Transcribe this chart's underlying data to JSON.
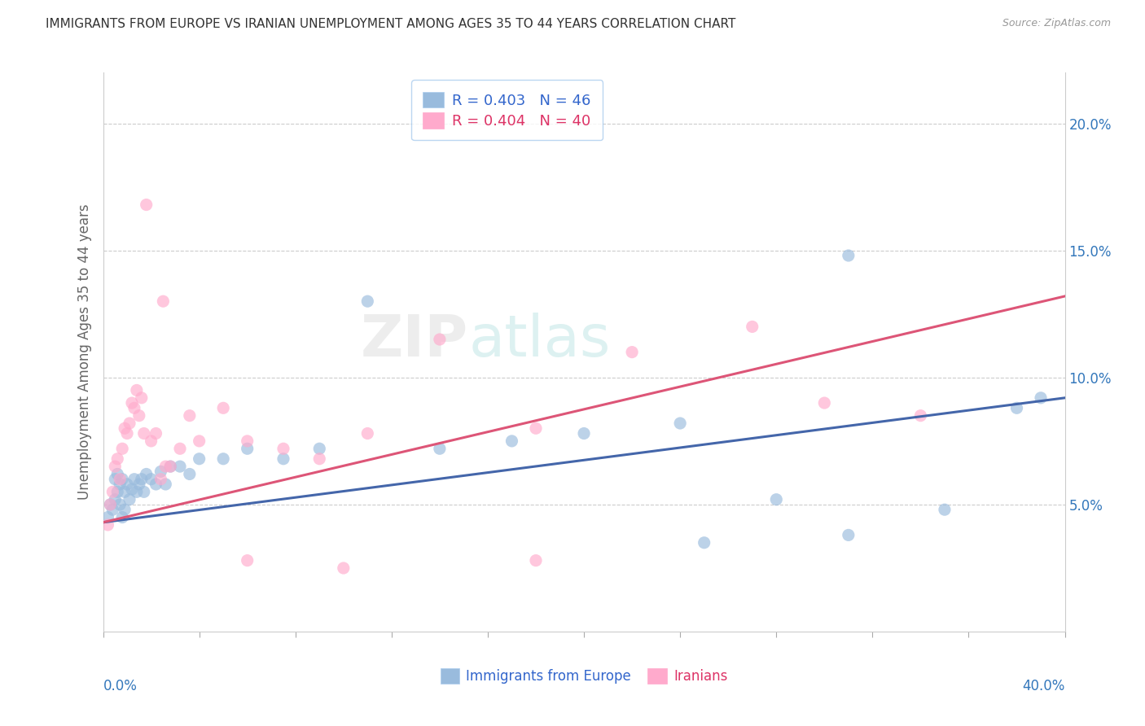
{
  "title": "IMMIGRANTS FROM EUROPE VS IRANIAN UNEMPLOYMENT AMONG AGES 35 TO 44 YEARS CORRELATION CHART",
  "source": "Source: ZipAtlas.com",
  "ylabel": "Unemployment Among Ages 35 to 44 years",
  "xmin": 0.0,
  "xmax": 0.4,
  "ymin": 0.0,
  "ymax": 0.22,
  "yticks": [
    0.05,
    0.1,
    0.15,
    0.2
  ],
  "ytick_labels": [
    "5.0%",
    "10.0%",
    "15.0%",
    "20.0%"
  ],
  "blue_R": "R = 0.403",
  "blue_N": "N = 46",
  "pink_R": "R = 0.404",
  "pink_N": "N = 40",
  "blue_color": "#99BBDD",
  "pink_color": "#FFAACC",
  "blue_line_color": "#4466AA",
  "pink_line_color": "#DD5577",
  "legend_label_blue": "Immigrants from Europe",
  "legend_label_pink": "Iranians",
  "watermark_part1": "ZIP",
  "watermark_part2": "atlas",
  "blue_points_x": [
    0.002,
    0.003,
    0.004,
    0.005,
    0.005,
    0.006,
    0.006,
    0.007,
    0.007,
    0.008,
    0.008,
    0.009,
    0.009,
    0.01,
    0.011,
    0.012,
    0.013,
    0.014,
    0.015,
    0.016,
    0.017,
    0.018,
    0.02,
    0.022,
    0.024,
    0.026,
    0.028,
    0.032,
    0.036,
    0.04,
    0.05,
    0.06,
    0.075,
    0.09,
    0.11,
    0.14,
    0.17,
    0.2,
    0.24,
    0.28,
    0.31,
    0.35,
    0.38,
    0.39,
    0.31,
    0.25
  ],
  "blue_points_y": [
    0.045,
    0.05,
    0.048,
    0.052,
    0.06,
    0.055,
    0.062,
    0.05,
    0.058,
    0.045,
    0.06,
    0.055,
    0.048,
    0.058,
    0.052,
    0.056,
    0.06,
    0.055,
    0.058,
    0.06,
    0.055,
    0.062,
    0.06,
    0.058,
    0.063,
    0.058,
    0.065,
    0.065,
    0.062,
    0.068,
    0.068,
    0.072,
    0.068,
    0.072,
    0.13,
    0.072,
    0.075,
    0.078,
    0.082,
    0.052,
    0.148,
    0.048,
    0.088,
    0.092,
    0.038,
    0.035
  ],
  "pink_points_x": [
    0.002,
    0.003,
    0.004,
    0.005,
    0.006,
    0.007,
    0.008,
    0.009,
    0.01,
    0.011,
    0.012,
    0.013,
    0.014,
    0.015,
    0.016,
    0.017,
    0.018,
    0.02,
    0.022,
    0.024,
    0.026,
    0.028,
    0.032,
    0.036,
    0.04,
    0.05,
    0.06,
    0.075,
    0.09,
    0.11,
    0.14,
    0.18,
    0.22,
    0.27,
    0.3,
    0.34,
    0.18,
    0.1,
    0.06,
    0.025
  ],
  "pink_points_y": [
    0.042,
    0.05,
    0.055,
    0.065,
    0.068,
    0.06,
    0.072,
    0.08,
    0.078,
    0.082,
    0.09,
    0.088,
    0.095,
    0.085,
    0.092,
    0.078,
    0.168,
    0.075,
    0.078,
    0.06,
    0.065,
    0.065,
    0.072,
    0.085,
    0.075,
    0.088,
    0.075,
    0.072,
    0.068,
    0.078,
    0.115,
    0.08,
    0.11,
    0.12,
    0.09,
    0.085,
    0.028,
    0.025,
    0.028,
    0.13
  ],
  "blue_line_x0": 0.0,
  "blue_line_y0": 0.043,
  "blue_line_x1": 0.4,
  "blue_line_y1": 0.092,
  "pink_line_x0": 0.0,
  "pink_line_y0": 0.043,
  "pink_line_x1": 0.4,
  "pink_line_y1": 0.132
}
